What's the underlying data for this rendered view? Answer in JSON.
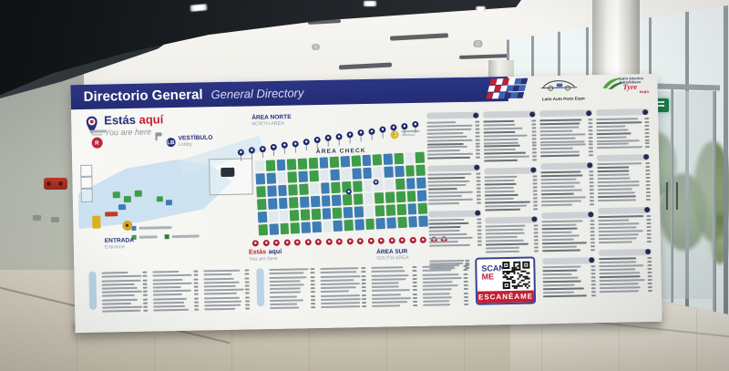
{
  "colors": {
    "header_blue": "#273179",
    "accent_red": "#c22033",
    "marker_navy": "#1e2a6d",
    "marker_red": "#b01f37",
    "booth_green": "#3f9d49",
    "booth_blue": "#3e7cb5",
    "lobby_blue": "#c5deee",
    "badge_yellow": "#dcaf1e"
  },
  "environment": {
    "wall_sign": "ANAL 2"
  },
  "board": {
    "header": {
      "title": "Directorio General",
      "subtitle": "General Directory"
    },
    "logos": {
      "auto_parts_label": "Latin Auto Parts Expo",
      "tyre_line1": "Latin America",
      "tyre_line2": "& Caribbean",
      "tyre_script": "Tyre",
      "tyre_expo": "expo"
    },
    "you_are_here": {
      "word1": "Estás",
      "word2": "aquí",
      "subtitle": "You are here"
    },
    "map": {
      "area_north": "ÁREA NORTE",
      "area_north_sub": "NORTH AREA",
      "area_check": "ÁREA CHECK",
      "area_south": "ÁREA SUR",
      "area_south_sub": "SOUTH AREA",
      "vestibulo": "VESTÍBULO",
      "vestibulo_sub": "Lobby",
      "entrada": "ENTRADA",
      "entrada_sub": "Entrance",
      "marker_r": "R",
      "marker_lb": "LB",
      "marker_c": "C",
      "bottom_here_word1": "Estás",
      "bottom_here_word2": "aquí",
      "bottom_here_sub": "You are here"
    },
    "qr": {
      "line1": "SCAN",
      "line2": "ME",
      "band": "ESCANÉAME"
    },
    "structure": {
      "top_markers": 17,
      "bottom_markers": 19,
      "grid_cols": 16,
      "grid_rows": 6,
      "directory_columns": [
        [
          11,
          9,
          8
        ],
        [
          12,
          10,
          8
        ],
        [
          11,
          10,
          9,
          9
        ],
        [
          9,
          11,
          8,
          10
        ]
      ],
      "bottom_groups": [
        [
          11,
          11,
          11
        ],
        [
          11,
          11,
          11,
          11
        ]
      ],
      "footnote_rows": 4
    }
  }
}
